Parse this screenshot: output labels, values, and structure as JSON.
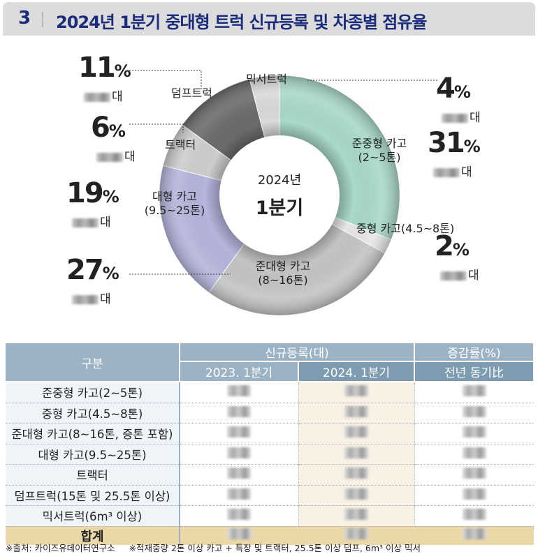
{
  "header": {
    "number": "3",
    "title": "2024년 1분기 중대형 트럭 신규등록 및 차종별 점유율"
  },
  "chart_data": {
    "type": "pie",
    "style": "donut",
    "center_text": [
      "2024년",
      "1분기"
    ],
    "slices": [
      {
        "label": "준중형 카고",
        "sub": "(2~5톤)",
        "value": 31,
        "color": "#a9d9c8"
      },
      {
        "label": "중형 카고(4.5~8톤)",
        "sub": "",
        "value": 2,
        "color": "#e6e6e6"
      },
      {
        "label": "준대형 카고",
        "sub": "(8~16톤)",
        "value": 27,
        "color": "#c4c4c4"
      },
      {
        "label": "대형 카고",
        "sub": "(9.5~25톤)",
        "value": 19,
        "color": "#b5b5dd"
      },
      {
        "label": "트랙터",
        "sub": "",
        "value": 6,
        "color": "#cdcdcd"
      },
      {
        "label": "덤프트럭",
        "sub": "",
        "value": 11,
        "color": "#6b6b6b"
      },
      {
        "label": "믹서트럭",
        "sub": "",
        "value": 4,
        "color": "#d9d9d9"
      }
    ],
    "unit_suffix": "대"
  },
  "table": {
    "h_category": "구분",
    "h_new": "신규등록(대)",
    "h_rate": "증감률(%)",
    "h_2023": "2023. 1분기",
    "h_2024": "2024. 1분기",
    "h_yoy": "전년 동기比",
    "rows": [
      "준중형 카고(2~5톤)",
      "중형 카고(4.5~8톤)",
      "준대형 카고(8~16톤, 증톤 포함)",
      "대형 카고(9.5~25톤)",
      "트랙터",
      "덤프트럭(15톤 및 25.5톤 이상)",
      "믹서트럭(6m³ 이상)"
    ],
    "total": "합계"
  },
  "footnote": "※출처: 카이즈유데이터연구소     ※적재중량 2톤 이상 카고 + 특장 및 트랙터, 25.5톤 이상 덤프, 6m³ 이상 믹서"
}
